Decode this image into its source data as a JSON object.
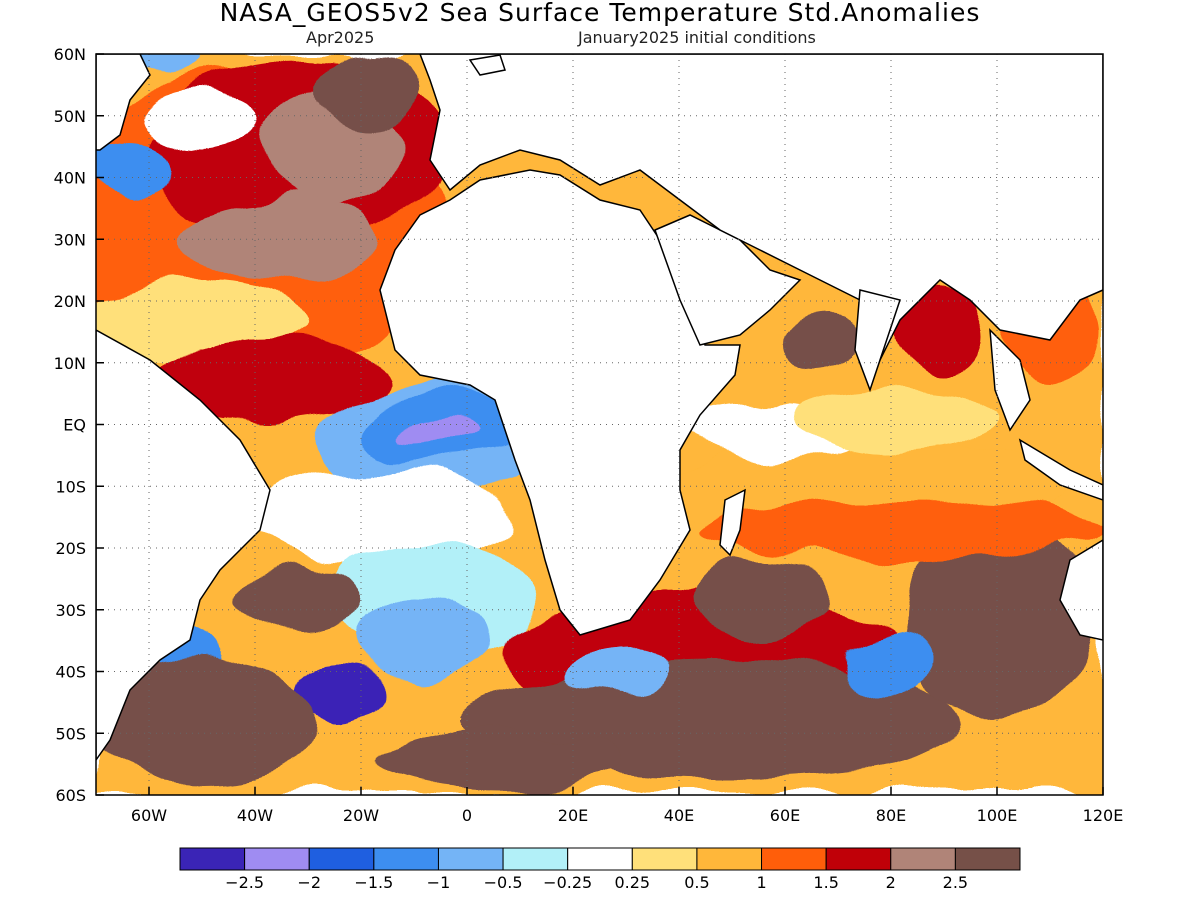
{
  "title": "NASA_GEOS5v2 Sea Surface Temperature Std.Anomalies",
  "subtitle_left": "Apr2025",
  "subtitle_right": "January2025 initial conditions",
  "map": {
    "lon_range": [
      -70,
      120
    ],
    "lat_range": [
      -60,
      60
    ],
    "grid": "dotted",
    "lat_labels": [
      "60N",
      "50N",
      "40N",
      "30N",
      "20N",
      "10N",
      "EQ",
      "10S",
      "20S",
      "30S",
      "40S",
      "50S",
      "60S"
    ],
    "lon_labels": [
      "60W",
      "40W",
      "20W",
      "0",
      "20E",
      "40E",
      "60E",
      "80E",
      "100E",
      "120E"
    ]
  },
  "colorbar": {
    "colors": [
      "#3a24b6",
      "#9f8cf2",
      "#1f5fe0",
      "#3d8ef0",
      "#74b4f6",
      "#b2f0f8",
      "#ffffff",
      "#ffe07a",
      "#ffb73a",
      "#ff5e0a",
      "#c00008",
      "#b08478",
      "#765048"
    ],
    "labels": [
      "−2.5",
      "−2",
      "−1.5",
      "−1",
      "−0.5",
      "−0.25",
      "0.25",
      "0.5",
      "1",
      "1.5",
      "2",
      "2.5"
    ]
  }
}
